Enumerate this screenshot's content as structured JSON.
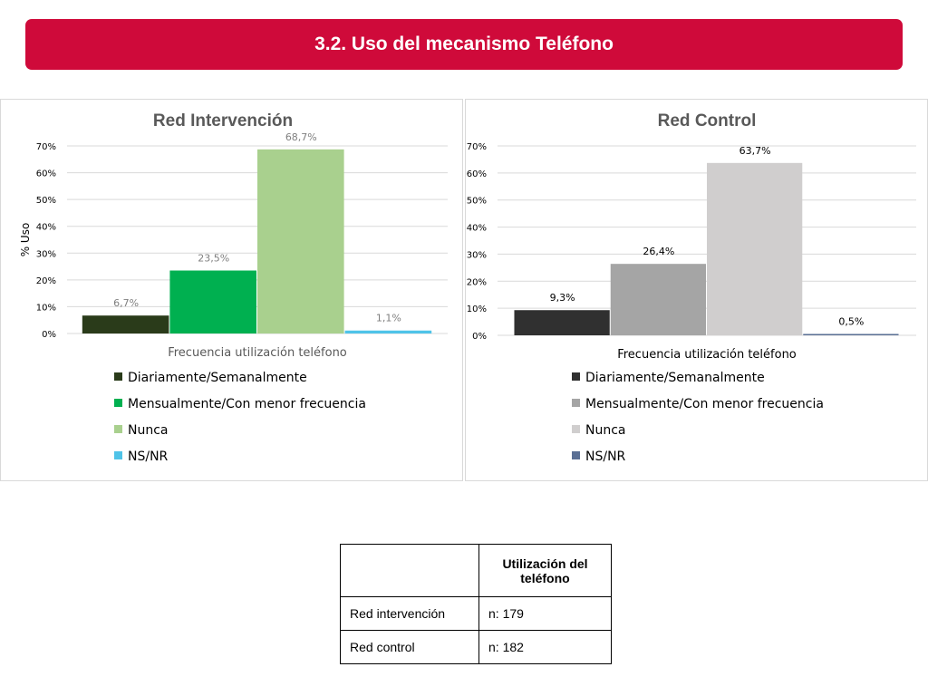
{
  "title": "3.2. Uso del mecanismo Teléfono",
  "chart_data": [
    {
      "type": "bar",
      "title": "Red Intervención",
      "xlabel": "Frecuencia utilización teléfono",
      "ylabel": "% Uso",
      "ylim": [
        0,
        70
      ],
      "yticks": [
        "0%",
        "10%",
        "20%",
        "30%",
        "40%",
        "50%",
        "60%",
        "70%"
      ],
      "grid": true,
      "legend_position": "bottom",
      "series": [
        {
          "name": "Diariamente/Semanalmente",
          "values": [
            6.7
          ],
          "label": "6,7%",
          "color": "#2a3b1a"
        },
        {
          "name": "Mensualmente/Con menor frecuencia",
          "values": [
            23.5
          ],
          "label": "23,5%",
          "color": "#00b050"
        },
        {
          "name": "Nunca",
          "values": [
            68.7
          ],
          "label": "68,7%",
          "color": "#a9d08e"
        },
        {
          "name": "NS/NR",
          "values": [
            1.1
          ],
          "label": "1,1%",
          "color": "#4fc3e8"
        }
      ]
    },
    {
      "type": "bar",
      "title": "Red Control",
      "xlabel": "Frecuencia utilización teléfono",
      "ylabel": "",
      "ylim": [
        0,
        70
      ],
      "yticks": [
        "0%",
        "10%",
        "20%",
        "30%",
        "40%",
        "50%",
        "60%",
        "70%"
      ],
      "grid": true,
      "legend_position": "bottom",
      "series": [
        {
          "name": "Diariamente/Semanalmente",
          "values": [
            9.3
          ],
          "label": "9,3%",
          "color": "#303030"
        },
        {
          "name": "Mensualmente/Con menor frecuencia",
          "values": [
            26.4
          ],
          "label": "26,4%",
          "color": "#a5a5a5"
        },
        {
          "name": "Nunca",
          "values": [
            63.7
          ],
          "label": "63,7%",
          "color": "#d0cece"
        },
        {
          "name": "NS/NR",
          "values": [
            0.5
          ],
          "label": "0,5%",
          "color": "#5a6f94"
        }
      ]
    }
  ],
  "table": {
    "header": [
      "",
      "Utilización del teléfono"
    ],
    "rows": [
      [
        "Red intervención",
        "n: 179"
      ],
      [
        "Red control",
        "n: 182"
      ]
    ]
  }
}
